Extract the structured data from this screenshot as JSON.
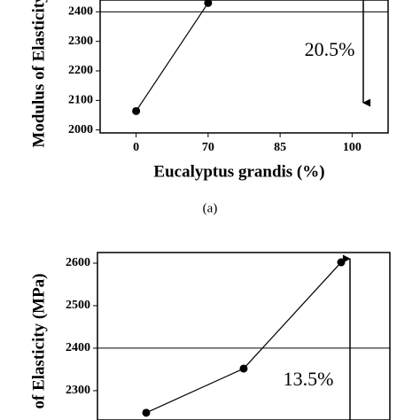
{
  "chart_data": [
    {
      "type": "line",
      "y_label": "Modulus of Elasticity",
      "x_label": "Eucalyptus grandis (%)",
      "caption": "(a)",
      "annotation": "20.5%",
      "categories": [
        "0",
        "70",
        "85",
        "100"
      ],
      "series": [
        {
          "color": "#000000",
          "values": [
            2064,
            2430,
            null,
            null
          ]
        }
      ],
      "ylim": [
        1990,
        2440
      ],
      "yticks": [
        2000,
        2100,
        2200,
        2300,
        2400
      ],
      "reference_line": 2400
    },
    {
      "type": "line",
      "y_label": "of Elasticity (MPa)",
      "annotation": "13.5%",
      "categories": [
        null,
        null,
        null
      ],
      "series": [
        {
          "color": "#000000",
          "values": [
            2248,
            2352,
            2602
          ]
        }
      ],
      "ylim": [
        2231,
        2625
      ],
      "yticks": [
        2300,
        2400,
        2500,
        2600
      ],
      "reference_line": 2400
    }
  ]
}
